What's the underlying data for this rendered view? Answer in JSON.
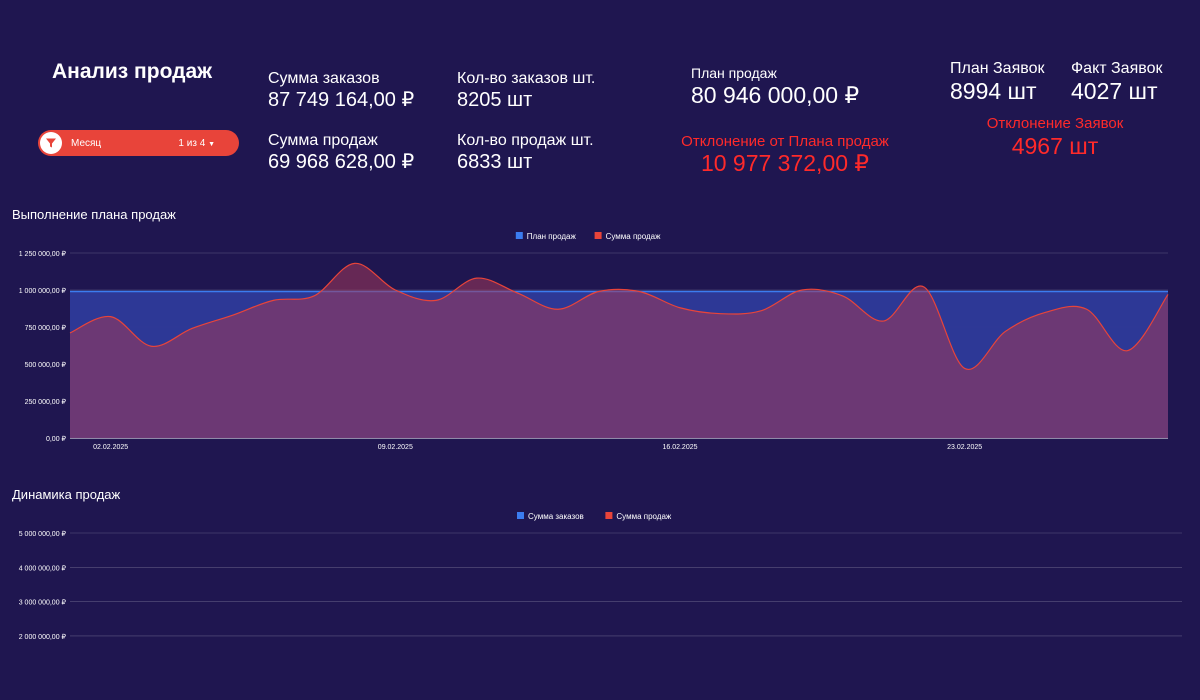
{
  "header": {
    "title": "Анализ продаж",
    "filter": {
      "label": "Месяц",
      "count": "1 из 4"
    }
  },
  "kpis": {
    "orders_sum": {
      "label": "Сумма заказов",
      "value": "87 749 164,00 ₽"
    },
    "sales_sum": {
      "label": "Сумма продаж",
      "value": "69 968 628,00 ₽"
    },
    "orders_count": {
      "label": "Кол-во заказов шт.",
      "value": "8205 шт"
    },
    "sales_count": {
      "label": "Кол-во продаж шт.",
      "value": "6833 шт"
    },
    "sales_plan": {
      "label": "План продаж",
      "value": "80 946 000,00 ₽"
    },
    "plan_deviation": {
      "label": "Отклонение от Плана продаж",
      "value": "10 977 372,00 ₽"
    },
    "orders_plan": {
      "label": "План Заявок",
      "value": "8994 шт"
    },
    "orders_fact": {
      "label": "Факт Заявок",
      "value": "4027 шт"
    },
    "orders_deviation": {
      "label": "Отклонение Заявок",
      "value": "4967 шт"
    }
  },
  "colors": {
    "background": "#1f1650",
    "plan": "#3b7cf0",
    "sales": "#e8443a",
    "deviation": "#ff2a2a"
  },
  "chart_data": [
    {
      "type": "area",
      "title": "Выполнение плана продаж",
      "legend_placement": "top-center",
      "y_ticks": [
        0,
        250000,
        500000,
        750000,
        1000000,
        1250000
      ],
      "y_tick_labels": [
        "0,00 ₽",
        "250 000,00 ₽",
        "500 000,00 ₽",
        "750 000,00 ₽",
        "1 000 000,00 ₽",
        "1 250 000,00 ₽"
      ],
      "ylim": [
        0,
        1250000
      ],
      "x": [
        "01.02.2025",
        "02.02.2025",
        "03.02.2025",
        "04.02.2025",
        "05.02.2025",
        "06.02.2025",
        "07.02.2025",
        "08.02.2025",
        "09.02.2025",
        "10.02.2025",
        "11.02.2025",
        "12.02.2025",
        "13.02.2025",
        "14.02.2025",
        "15.02.2025",
        "16.02.2025",
        "17.02.2025",
        "18.02.2025",
        "19.02.2025",
        "20.02.2025",
        "21.02.2025",
        "22.02.2025",
        "23.02.2025",
        "24.02.2025",
        "25.02.2025",
        "26.02.2025",
        "27.02.2025",
        "28.02.2025"
      ],
      "x_tick_labels": [
        "02.02.2025",
        "09.02.2025",
        "16.02.2025",
        "23.02.2025"
      ],
      "grid": true,
      "series": [
        {
          "name": "План продаж",
          "values": [
            990000,
            990000,
            990000,
            990000,
            990000,
            990000,
            990000,
            990000,
            990000,
            990000,
            990000,
            990000,
            990000,
            990000,
            990000,
            990000,
            990000,
            990000,
            990000,
            990000,
            990000,
            990000,
            990000,
            990000,
            990000,
            990000,
            990000,
            990000
          ]
        },
        {
          "name": "Сумма продаж",
          "values": [
            710000,
            820000,
            620000,
            740000,
            830000,
            930000,
            960000,
            1180000,
            1000000,
            930000,
            1080000,
            980000,
            870000,
            990000,
            990000,
            880000,
            840000,
            860000,
            1000000,
            960000,
            790000,
            1020000,
            470000,
            720000,
            850000,
            870000,
            590000,
            970000
          ]
        }
      ]
    },
    {
      "type": "line",
      "title": "Динамика продаж",
      "legend_placement": "top-center",
      "y_ticks": [
        2000000,
        3000000,
        4000000,
        5000000
      ],
      "y_tick_labels": [
        "2 000 000,00 ₽",
        "3 000 000,00 ₽",
        "4 000 000,00 ₽",
        "5 000 000,00 ₽"
      ],
      "grid": true,
      "series": [
        {
          "name": "Сумма заказов",
          "values": []
        },
        {
          "name": "Сумма продаж",
          "values": []
        }
      ]
    }
  ]
}
